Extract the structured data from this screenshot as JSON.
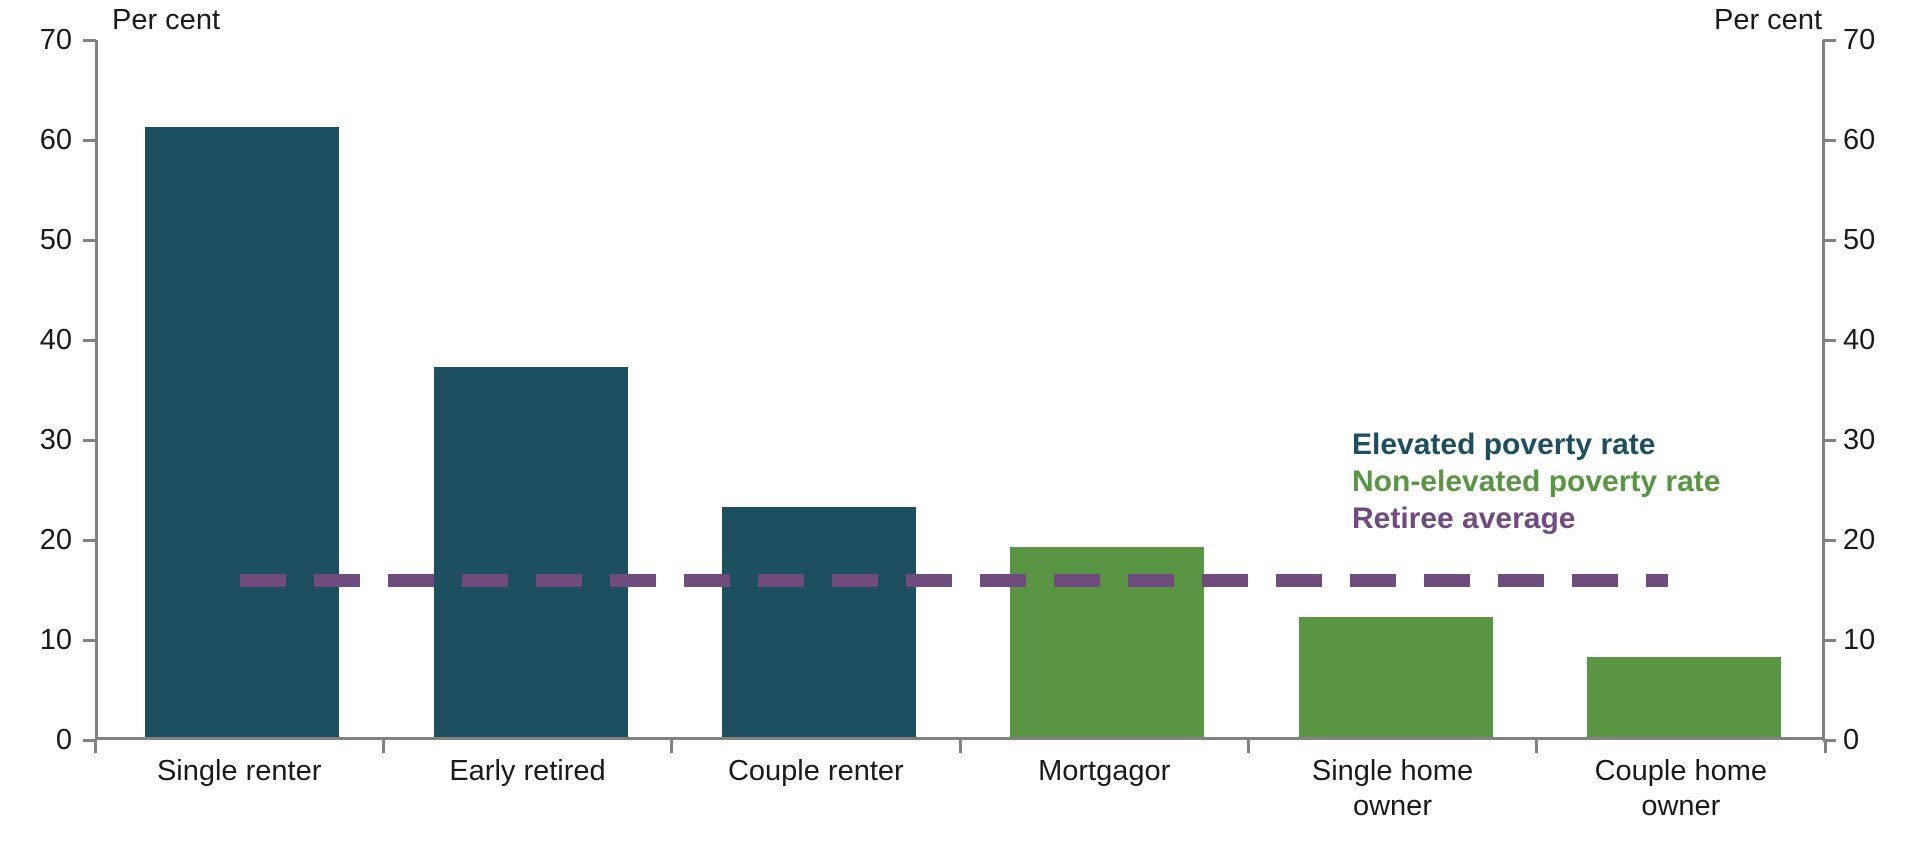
{
  "chart_data": {
    "type": "bar",
    "title": "",
    "ylabel_left": "Per cent",
    "ylabel_right": "Per cent",
    "ylim": [
      0,
      70
    ],
    "yticks": [
      0,
      10,
      20,
      30,
      40,
      50,
      60,
      70
    ],
    "grid": false,
    "categories": [
      "Single renter",
      "Early retired",
      "Couple renter",
      "Mortgagor",
      "Single home\nowner",
      "Couple home\nowner"
    ],
    "values": [
      61,
      37,
      23,
      19,
      12,
      8
    ],
    "bar_colors": [
      "#1d4f5f",
      "#1d4f5f",
      "#1d4f5f",
      "#5a9544",
      "#5a9544",
      "#5a9544"
    ],
    "reference_line": {
      "label": "Retiree average",
      "value": 16,
      "color": "#6f4b7e",
      "style": "dashed"
    },
    "legend": [
      {
        "label": "Elevated poverty rate",
        "color": "#1d4f5f"
      },
      {
        "label": "Non-elevated poverty rate",
        "color": "#5a9544"
      },
      {
        "label": "Retiree average",
        "color": "#6f4b7e"
      }
    ],
    "legend_position": "right-middle",
    "axis_color": "#828282"
  }
}
